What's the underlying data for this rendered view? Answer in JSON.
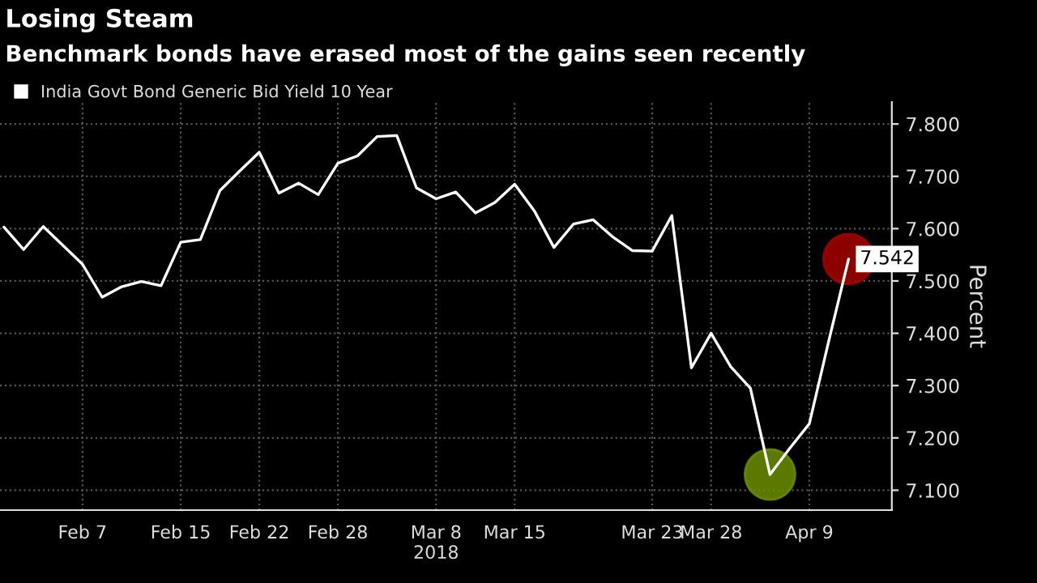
{
  "chart_data": {
    "type": "line",
    "title": "Losing Steam",
    "subtitle": "Benchmark bonds have erased most of the gains seen recently",
    "ylabel": "Percent",
    "categories": [
      null,
      null,
      null,
      null,
      "Feb 7",
      null,
      null,
      null,
      null,
      "Feb 15",
      null,
      null,
      null,
      "Feb 22",
      null,
      null,
      null,
      "Feb 28",
      null,
      null,
      null,
      null,
      "Mar 8\n2018",
      null,
      null,
      null,
      "Mar 15",
      null,
      null,
      null,
      null,
      null,
      null,
      "Mar 23",
      null,
      null,
      "Mar 28",
      null,
      null,
      null,
      null,
      "Apr 9",
      null,
      null
    ],
    "series": [
      {
        "name": "India Govt Bond Generic Bid Yield 10 Year",
        "color": "#ffffff",
        "values": [
          7.603,
          7.56,
          7.604,
          7.568,
          7.532,
          7.469,
          7.489,
          7.499,
          7.491,
          7.574,
          7.579,
          7.673,
          7.71,
          7.746,
          7.668,
          7.687,
          7.665,
          7.725,
          7.739,
          7.776,
          7.778,
          7.678,
          7.657,
          7.67,
          7.63,
          7.65,
          7.685,
          7.634,
          7.564,
          7.609,
          7.617,
          7.584,
          7.558,
          7.557,
          7.625,
          7.334,
          7.4,
          7.336,
          7.295,
          7.13,
          7.18,
          7.227,
          7.387,
          7.542
        ],
        "value_labels": [
          null,
          null,
          null,
          null,
          null,
          null,
          null,
          null,
          null,
          null,
          null,
          null,
          null,
          null,
          null,
          null,
          null,
          null,
          null,
          null,
          null,
          null,
          null,
          null,
          null,
          null,
          null,
          null,
          null,
          null,
          null,
          null,
          null,
          null,
          null,
          null,
          null,
          null,
          null,
          null,
          null,
          null,
          null,
          "7.542"
        ]
      },
      {
        "type": "scatter",
        "marker": "circle",
        "color": "#6b8e00",
        "values": [
          null,
          null,
          null,
          null,
          null,
          null,
          null,
          null,
          null,
          null,
          null,
          null,
          null,
          null,
          null,
          null,
          null,
          null,
          null,
          null,
          null,
          null,
          null,
          null,
          null,
          null,
          null,
          null,
          null,
          null,
          null,
          null,
          null,
          null,
          null,
          null,
          null,
          null,
          null,
          7.13,
          null,
          null,
          null,
          null
        ]
      },
      {
        "type": "scatter",
        "marker": "circle",
        "color": "#a50000",
        "values": [
          null,
          null,
          null,
          null,
          null,
          null,
          null,
          null,
          null,
          null,
          null,
          null,
          null,
          null,
          null,
          null,
          null,
          null,
          null,
          null,
          null,
          null,
          null,
          null,
          null,
          null,
          null,
          null,
          null,
          null,
          null,
          null,
          null,
          null,
          null,
          null,
          null,
          null,
          null,
          null,
          null,
          null,
          null,
          7.542
        ]
      }
    ],
    "ylim": [
      7.062,
      7.842
    ],
    "yticks": [
      {
        "value": 7.1,
        "label": "7.100"
      },
      {
        "value": 7.2,
        "label": "7.200"
      },
      {
        "value": 7.3,
        "label": "7.300"
      },
      {
        "value": 7.4,
        "label": "7.400"
      },
      {
        "value": 7.5,
        "label": "7.500"
      },
      {
        "value": 7.6,
        "label": "7.600"
      },
      {
        "value": 7.7,
        "label": "7.700"
      },
      {
        "value": 7.8,
        "label": "7.800"
      }
    ],
    "grid": true,
    "legend": "top left",
    "marker": "none",
    "line_style": "solid"
  }
}
